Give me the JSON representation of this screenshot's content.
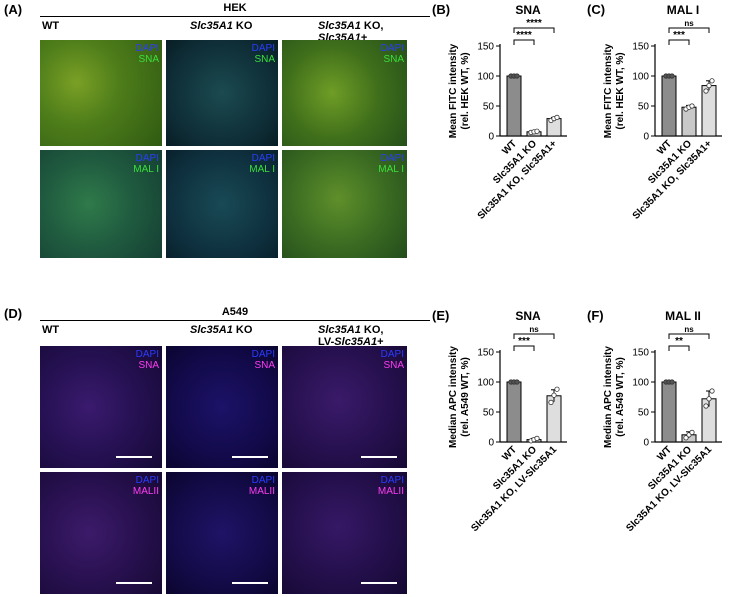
{
  "panels": {
    "A": {
      "label": "(A)",
      "group": "HEK",
      "columns": [
        {
          "text": "WT",
          "italic": ""
        },
        {
          "italic": "Slc35A1",
          "text": " KO"
        },
        {
          "italic": "Slc35A1",
          "text": " KO,",
          "line2_italic": "Slc35A1",
          "line2": "+"
        }
      ],
      "rows": [
        {
          "dapi": "DAPI",
          "stain": "SNA"
        },
        {
          "dapi": "DAPI",
          "stain": "MAL I"
        }
      ]
    },
    "D": {
      "label": "(D)",
      "group": "A549",
      "columns": [
        {
          "text": "WT",
          "italic": ""
        },
        {
          "italic": "Slc35A1",
          "text": " KO"
        },
        {
          "italic": "Slc35A1",
          "text": " KO,",
          "line2_prefix": "LV-",
          "line2_italic": "Slc35A1",
          "line2": "+"
        }
      ],
      "rows": [
        {
          "dapi": "DAPI",
          "stain": "SNA"
        },
        {
          "dapi": "DAPI",
          "stain": "MALII"
        }
      ]
    }
  },
  "chart_data": [
    {
      "panel": "(B)",
      "type": "bar",
      "title": "SNA",
      "ylabel_line1": "Mean FITC intensity",
      "ylabel_line2": "(rel. HEK WT, %)",
      "ylim": [
        0,
        150
      ],
      "yticks": [
        0,
        50,
        100,
        150
      ],
      "categories": [
        "WT",
        "Slc35A1 KO",
        "Slc35A1 KO, Slc35A1+"
      ],
      "values": [
        100,
        7,
        29
      ],
      "errors": [
        0.5,
        1,
        2
      ],
      "points": [
        [
          100,
          100,
          100
        ],
        [
          6,
          7,
          8
        ],
        [
          26,
          29,
          31
        ]
      ],
      "bar_colors": [
        "#8c8c8c",
        "#c9c9c9",
        "#dedede"
      ],
      "significance": [
        {
          "from": 0,
          "to": 1,
          "label": "****"
        },
        {
          "from": 0,
          "to": 2,
          "label": "****"
        }
      ]
    },
    {
      "panel": "(C)",
      "type": "bar",
      "title": "MAL I",
      "ylabel_line1": "Mean FITC intensity",
      "ylabel_line2": "(rel. HEK WT, %)",
      "ylim": [
        0,
        150
      ],
      "yticks": [
        0,
        50,
        100,
        150
      ],
      "categories": [
        "WT",
        "Slc35A1 KO",
        "Slc35A1 KO, Slc35A1+"
      ],
      "values": [
        100,
        48,
        84
      ],
      "errors": [
        0.5,
        3,
        8
      ],
      "points": [
        [
          100,
          100,
          100
        ],
        [
          45,
          48,
          50
        ],
        [
          75,
          84,
          92
        ]
      ],
      "bar_colors": [
        "#8c8c8c",
        "#c9c9c9",
        "#dedede"
      ],
      "significance": [
        {
          "from": 0,
          "to": 1,
          "label": "***"
        },
        {
          "from": 0,
          "to": 2,
          "label": "ns"
        }
      ]
    },
    {
      "panel": "(E)",
      "type": "bar",
      "title": "SNA",
      "ylabel_line1": "Median APC intensity",
      "ylabel_line2": "(rel. A549 WT, %)",
      "ylim": [
        0,
        150
      ],
      "yticks": [
        0,
        50,
        100,
        150
      ],
      "categories": [
        "WT",
        "Slc35A1 KO",
        "Slc35A1 KO, LV-Slc35A1"
      ],
      "values": [
        100,
        4,
        77
      ],
      "errors": [
        0.5,
        2,
        10
      ],
      "points": [
        [
          100,
          100,
          100
        ],
        [
          2,
          4,
          6
        ],
        [
          66,
          78,
          88
        ]
      ],
      "bar_colors": [
        "#8c8c8c",
        "#c9c9c9",
        "#dedede"
      ],
      "significance": [
        {
          "from": 0,
          "to": 1,
          "label": "***"
        },
        {
          "from": 0,
          "to": 2,
          "label": "ns"
        }
      ]
    },
    {
      "panel": "(F)",
      "type": "bar",
      "title": "MAL II",
      "ylabel_line1": "Median APC intensity",
      "ylabel_line2": "(rel. A549 WT, %)",
      "ylim": [
        0,
        150
      ],
      "yticks": [
        0,
        50,
        100,
        150
      ],
      "categories": [
        "WT",
        "Slc35A1 KO",
        "Slc35A1 KO, LV-Slc35A1"
      ],
      "values": [
        100,
        12,
        72
      ],
      "errors": [
        0.5,
        5,
        13
      ],
      "points": [
        [
          100,
          100,
          100
        ],
        [
          7,
          12,
          16
        ],
        [
          60,
          72,
          85
        ]
      ],
      "bar_colors": [
        "#8c8c8c",
        "#c9c9c9",
        "#dedede"
      ],
      "significance": [
        {
          "from": 0,
          "to": 1,
          "label": "**"
        },
        {
          "from": 0,
          "to": 2,
          "label": "ns"
        }
      ]
    }
  ]
}
